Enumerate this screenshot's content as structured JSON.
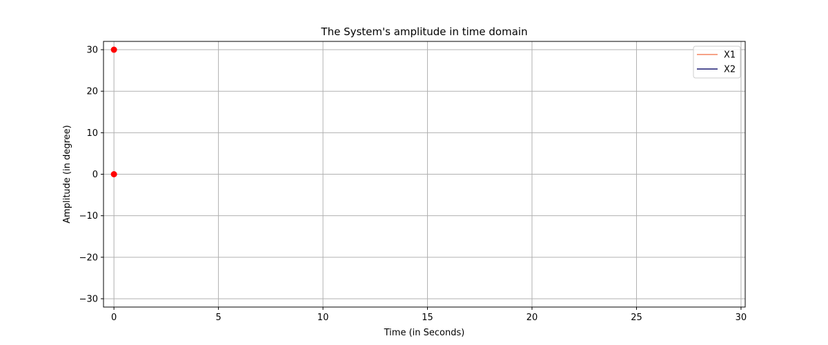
{
  "chart_data": {
    "type": "line",
    "title": "The System's amplitude in time domain",
    "xlabel": "Time (in Seconds)",
    "ylabel": "Amplitude (in degree)",
    "xlim": [
      -0.5,
      30.2
    ],
    "ylim": [
      -32,
      32
    ],
    "xticks": [
      0,
      5,
      10,
      15,
      20,
      25,
      30
    ],
    "yticks": [
      -30,
      -20,
      -10,
      0,
      10,
      20,
      30
    ],
    "grid": true,
    "legend_position": "top-right",
    "series": [
      {
        "name": "X1",
        "color": "#f4845f",
        "x": [],
        "y": []
      },
      {
        "name": "X2",
        "color": "#191970",
        "x": [],
        "y": []
      }
    ],
    "points": [
      {
        "x": 0,
        "y": 30,
        "color": "#ff0000"
      },
      {
        "x": 0,
        "y": 0,
        "color": "#ff0000"
      }
    ]
  }
}
